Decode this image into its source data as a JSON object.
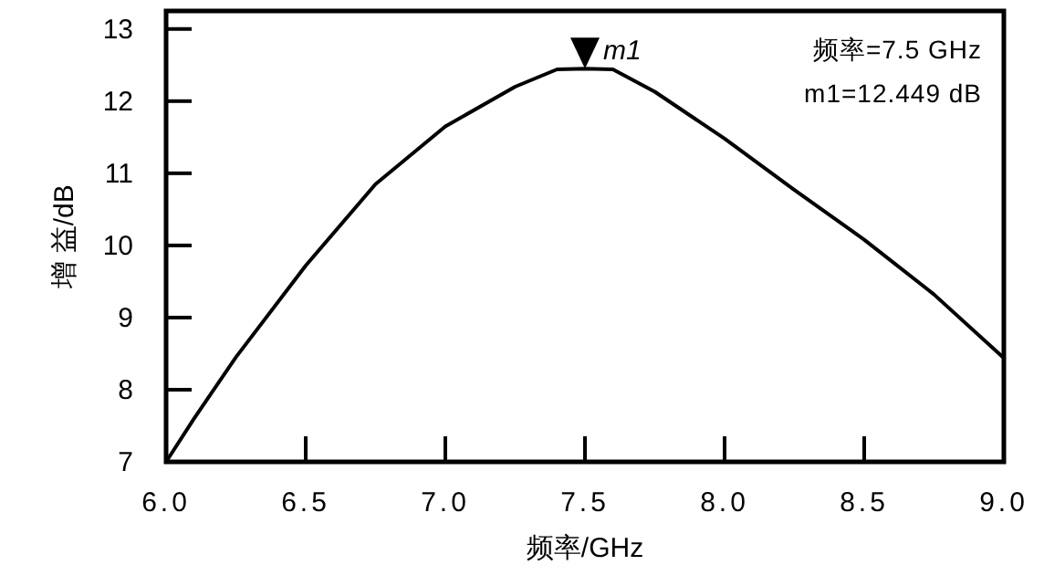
{
  "chart_data": {
    "type": "line",
    "xlabel": "频率/GHz",
    "ylabel": "增 益/dB",
    "x": [
      6.0,
      6.1,
      6.25,
      6.5,
      6.75,
      7.0,
      7.25,
      7.4,
      7.5,
      7.6,
      7.75,
      8.0,
      8.25,
      8.5,
      8.75,
      9.0
    ],
    "series": [
      {
        "color": "#000000",
        "values": [
          7.0,
          7.6,
          8.45,
          9.72,
          10.85,
          11.65,
          12.2,
          12.44,
          12.449,
          12.44,
          12.13,
          11.48,
          10.77,
          10.08,
          9.32,
          8.44
        ]
      }
    ],
    "xlim": [
      6.0,
      9.0
    ],
    "xticks": [
      {
        "value": 6.0,
        "label": "6.0"
      },
      6.5,
      {
        "value": 7.0,
        "label": "7.0"
      },
      7.5,
      {
        "value": 8.0,
        "label": "8.0"
      },
      8.5,
      {
        "value": 9.0,
        "label": "9.0"
      }
    ],
    "ylim": [
      7,
      13.25
    ],
    "yticks": [
      7,
      8,
      9,
      10,
      11,
      12,
      13
    ],
    "grid": false,
    "marker": "none",
    "line_style": "solid",
    "annotations": [
      {
        "text": "m1",
        "x": 7.5,
        "y": 12.449
      },
      "频率=7.5 GHz",
      "m1=12.449 dB"
    ]
  }
}
